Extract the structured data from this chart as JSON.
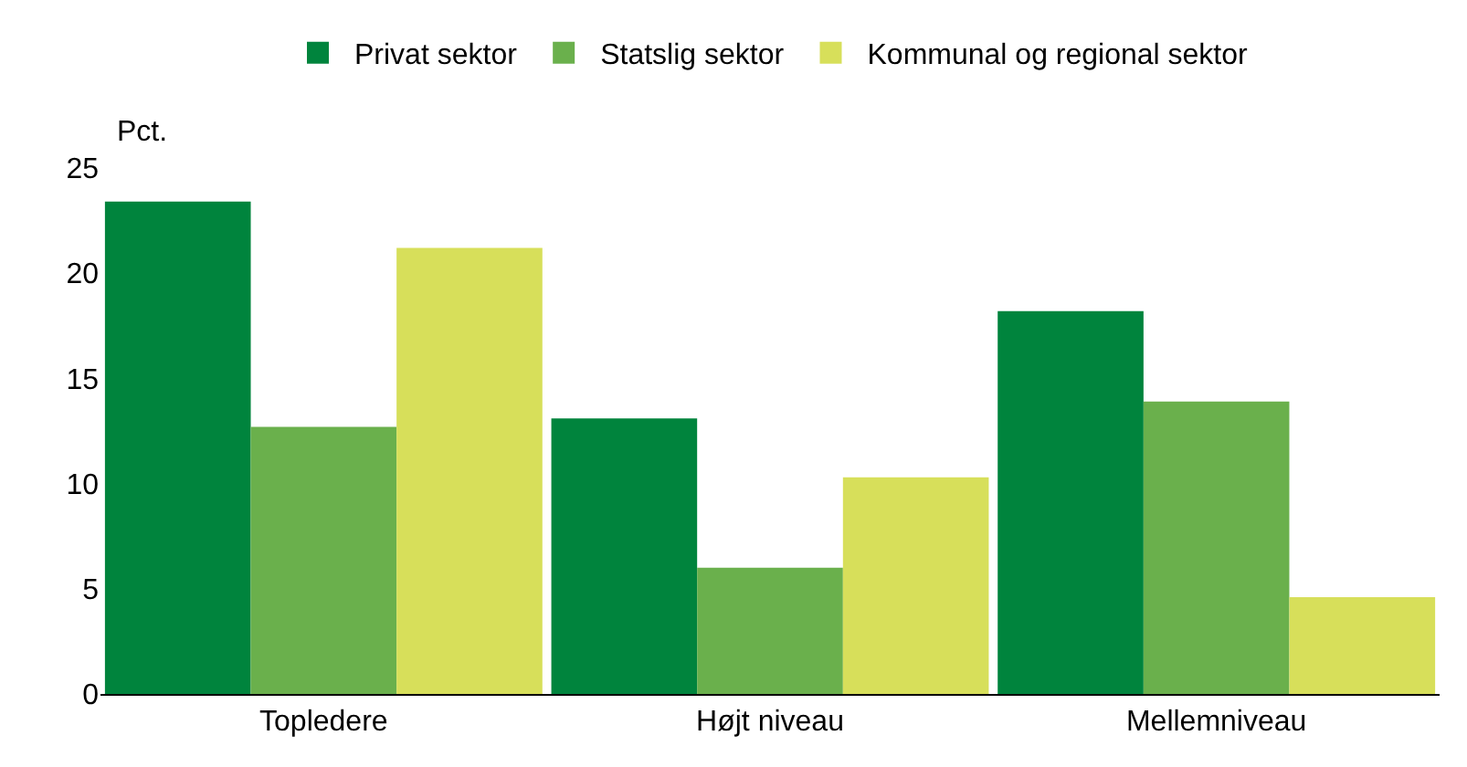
{
  "chart_data": {
    "type": "bar",
    "ylabel": "Pct.",
    "categories": [
      "Topledere",
      "Højt niveau",
      "Mellemniveau"
    ],
    "series": [
      {
        "name": "Privat sektor",
        "color": "#00843d",
        "values": [
          23.4,
          13.1,
          18.2
        ]
      },
      {
        "name": "Statslig sektor",
        "color": "#6ab04c",
        "values": [
          12.7,
          6.0,
          13.9
        ]
      },
      {
        "name": "Kommunal og regional sektor",
        "color": "#d7df5a",
        "values": [
          21.2,
          10.3,
          4.6
        ]
      }
    ],
    "ylim": [
      0,
      25
    ],
    "yticks": [
      0,
      5,
      10,
      15,
      20,
      25
    ],
    "grid": false,
    "legend": "top"
  }
}
